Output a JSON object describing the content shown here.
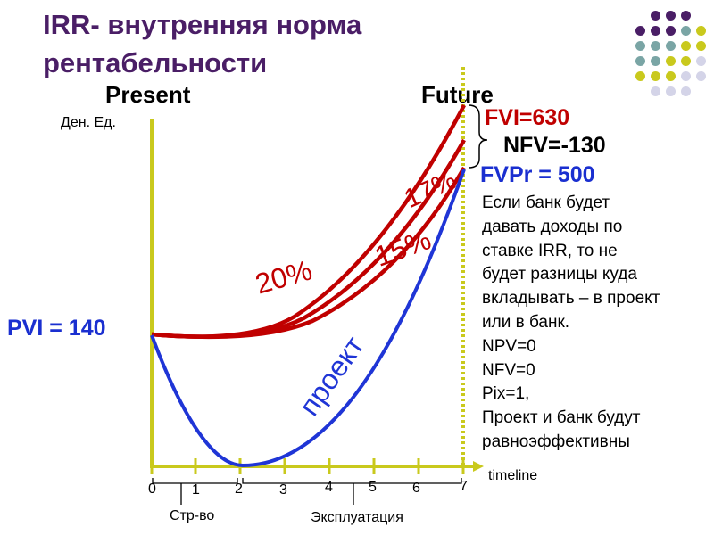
{
  "title": {
    "line1": "IRR- внутренняя норма",
    "line2": "рентабельности"
  },
  "headers": {
    "present": "Present",
    "future": "Future"
  },
  "y_unit": "Ден. Ед.",
  "values": {
    "pvi": "PVI = 140",
    "fvi": "FVI=630",
    "nfv": "NFV=-130",
    "fvpr": "FVPr = 500"
  },
  "curve_labels": {
    "r20": "20%",
    "r15": "15%",
    "r17": "17%",
    "project": "проект"
  },
  "timeline": {
    "label": "timeline",
    "ticks": [
      "0",
      "1",
      "2",
      "3",
      "4",
      "5",
      "6",
      "7"
    ],
    "phases": {
      "construction": "Стр-во",
      "operation": "Эксплуатация"
    }
  },
  "note_lines": [
    "Если банк будет",
    "давать доходы по",
    "ставке IRR, то не",
    "будет разницы куда",
    "вкладывать – в проект",
    "или в банк.",
    "NPV=0",
    "NFV=0",
    "Pix=1,",
    "Проект и банк будут",
    "равноэффективны"
  ],
  "colors": {
    "title": "#4a1e66",
    "axis": "#c9c91d",
    "rate_curves": "#c00000",
    "project_curve": "#1f35d6",
    "value_blue": "#1a2fd0",
    "value_red": "#c00000",
    "dot_purple": "#4a1e66",
    "dot_teal": "#7aa5a5",
    "dot_yellow": "#c9c91d",
    "dot_lilac": "#d4d4e8"
  }
}
